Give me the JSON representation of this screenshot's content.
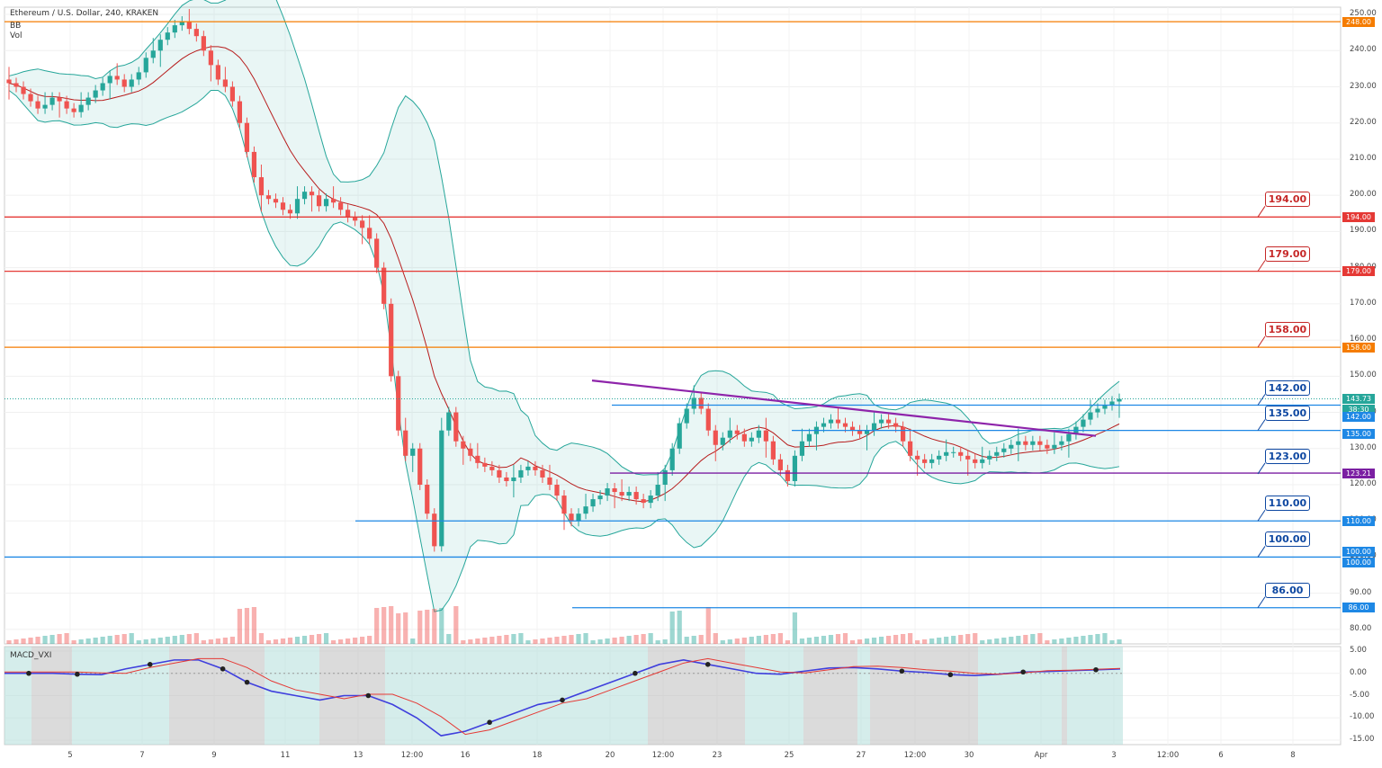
{
  "header": {
    "title": "Ethereum / U.S. Dollar, 240, KRAKEN",
    "indicator1": "BB",
    "indicator2": "Vol",
    "macd_label": "MACD_VXI"
  },
  "chart_data": {
    "type": "candlestick",
    "price_axis_ticks": [
      "250.00",
      "240.00",
      "230.00",
      "220.00",
      "210.00",
      "200.00",
      "190.00",
      "180.00",
      "170.00",
      "160.00",
      "150.00",
      "140.00",
      "130.00",
      "120.00",
      "110.00",
      "100.00",
      "90.00",
      "80.00"
    ],
    "macd_axis_ticks": [
      "5.00",
      "0.00",
      "-5.00",
      "-10.00",
      "-15.00"
    ],
    "time_ticks": [
      "5",
      "7",
      "9",
      "11",
      "13",
      "12:00",
      "16",
      "18",
      "20",
      "12:00",
      "23",
      "25",
      "27",
      "12:00",
      "30",
      "Apr",
      "3",
      "12:00",
      "6",
      "8"
    ],
    "levels": [
      {
        "price": 248,
        "label": "248.00",
        "color": "#f57c00"
      },
      {
        "price": 194,
        "label": "194.00",
        "color": "#e53935"
      },
      {
        "price": 179,
        "label": "179.00",
        "color": "#e53935"
      },
      {
        "price": 158,
        "label": "158.00",
        "color": "#f57c00"
      },
      {
        "price": 135,
        "label": "135.00",
        "color": "#1e88e5"
      },
      {
        "price": 123.21,
        "label": "123.21",
        "color": "#7b1fa2"
      },
      {
        "price": 110,
        "label": "110.00",
        "color": "#1e88e5"
      },
      {
        "price": 100,
        "label": "100.00",
        "color": "#1e88e5"
      },
      {
        "price": 86,
        "label": "86.00",
        "color": "#1e88e5"
      }
    ],
    "callouts": [
      {
        "label": "194.00",
        "price": 194,
        "color": "#c62828"
      },
      {
        "label": "179.00",
        "price": 179,
        "color": "#c62828"
      },
      {
        "label": "158.00",
        "price": 158,
        "color": "#c62828"
      },
      {
        "label": "142.00",
        "price": 142,
        "color": "#0d47a1"
      },
      {
        "label": "135.00",
        "price": 135,
        "color": "#0d47a1"
      },
      {
        "label": "123.00",
        "price": 123,
        "color": "#0d47a1"
      },
      {
        "label": "110.00",
        "price": 110,
        "color": "#0d47a1"
      },
      {
        "label": "100.00",
        "price": 100,
        "color": "#0d47a1"
      },
      {
        "label": "86.00",
        "price": 86,
        "color": "#0d47a1"
      }
    ],
    "price_tags": [
      {
        "label": "248.00",
        "color": "#f57c00"
      },
      {
        "label": "194.00",
        "color": "#e53935"
      },
      {
        "label": "179.00",
        "color": "#e53935"
      },
      {
        "label": "158.00",
        "color": "#f57c00"
      },
      {
        "label": "143.73",
        "color": "#26a69a"
      },
      {
        "label": "38:30",
        "color": "#26a69a"
      },
      {
        "label": "142.00",
        "color": "#1e88e5"
      },
      {
        "label": "135.00",
        "color": "#1e88e5"
      },
      {
        "label": "123.21",
        "color": "#7b1fa2"
      },
      {
        "label": "110.00",
        "color": "#1e88e5"
      },
      {
        "label": "100.00",
        "color": "#1e88e5"
      },
      {
        "label": "100.00",
        "color": "#1e88e5"
      },
      {
        "label": "86.00",
        "color": "#1e88e5"
      }
    ],
    "last_price": 143.73,
    "ohlc_closes": [
      231,
      230,
      228,
      226,
      224,
      225,
      227,
      226,
      224,
      223,
      225,
      227,
      229,
      231,
      233,
      232,
      230,
      232,
      234,
      238,
      240,
      243,
      245,
      247,
      248,
      246,
      244,
      240,
      236,
      232,
      230,
      226,
      220,
      212,
      205,
      200,
      199,
      198,
      196,
      195,
      199,
      201,
      200,
      197,
      199,
      198,
      196,
      194,
      193,
      191,
      188,
      180,
      170,
      150,
      135,
      128,
      130,
      120,
      112,
      103,
      135,
      140,
      132,
      130,
      128,
      126,
      125,
      124,
      122,
      121,
      122,
      124,
      125,
      124,
      122,
      120,
      117,
      112,
      110,
      112,
      114,
      116,
      117,
      119,
      118,
      117,
      118,
      116,
      115,
      117,
      120,
      124,
      130,
      137,
      141,
      144,
      141,
      135,
      131,
      133,
      135,
      134,
      132,
      133,
      135,
      132,
      127,
      124,
      121,
      128,
      132,
      134,
      136,
      137,
      138,
      137,
      136,
      135,
      134,
      135,
      137,
      138,
      137,
      136,
      132,
      128,
      127,
      126,
      127,
      128,
      129,
      129,
      128,
      127,
      126,
      127,
      128,
      129,
      130,
      131,
      132,
      131,
      132,
      131,
      130,
      131,
      132,
      134,
      136,
      138,
      140,
      141,
      142,
      143,
      143.7
    ],
    "bollinger_note": "BB upper/lower bands shaded",
    "trendlines": [
      {
        "from": [
          20,
          148.8
        ],
        "to": [
          31.7,
          133.5
        ],
        "color": "#8e24aa"
      }
    ],
    "macd_line": [
      0,
      0,
      0,
      -0.2,
      -0.3,
      1,
      2,
      3,
      3,
      1,
      -2,
      -4,
      -5,
      -6,
      -5,
      -5,
      -7,
      -10,
      -14,
      -13,
      -11,
      -9,
      -7,
      -6,
      -4,
      -2,
      0,
      2,
      3,
      2,
      1,
      0,
      -0.2,
      0.5,
      1.2,
      1.3,
      1,
      0.5,
      0.2,
      -0.3,
      -0.5,
      -0.2,
      0.3,
      0.4,
      0.6,
      0.8,
      1
    ],
    "grid": true
  }
}
